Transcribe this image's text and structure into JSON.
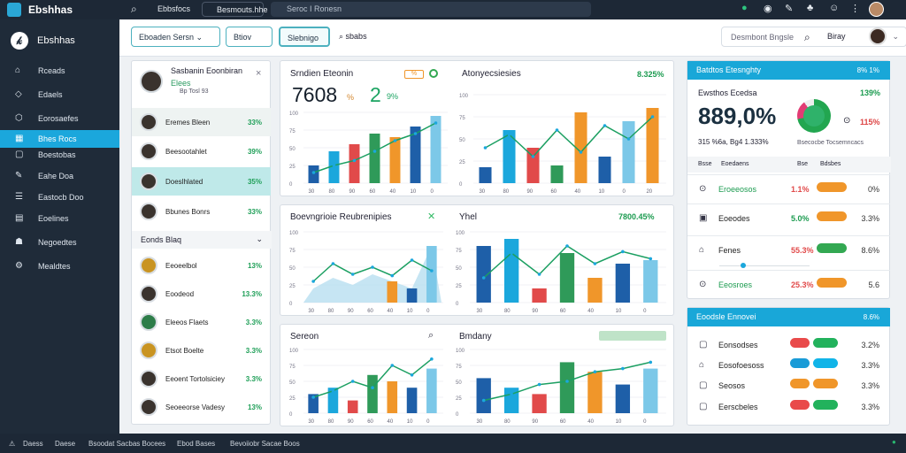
{
  "topbar": {
    "brand": "Ebshhas",
    "link": "Ebbsfocs",
    "pill": "Besmouts.hhe",
    "search_placeholder": "Seroc I Ronesn"
  },
  "sidebar": {
    "title": "Ebshhas",
    "items": [
      "Rceads",
      "Edaels",
      "Eorosaefes",
      "Bhes Rocs",
      "Boestobas",
      "Eahe Doa",
      "Eastocb Doo",
      "Eoelines",
      "Negoedtes",
      "Mealdtes"
    ]
  },
  "header": {
    "btn1": "Eboaden Sersn",
    "btn2": "Btiov",
    "btn3": "Slebnigo",
    "btn4": "sbabs",
    "select": "Desmbont Bngsle",
    "user": "Biray"
  },
  "profile": {
    "title": "Sasbanin Eoonbiran",
    "sub1": "Elees",
    "sub2": "Bp Tosl 93"
  },
  "people_top": [
    {
      "name": "Eremes Bleen",
      "pct": "33%"
    },
    {
      "name": "Beesootahlet",
      "pct": "39%"
    },
    {
      "name": "Doeslhlated",
      "pct": "35%"
    },
    {
      "name": "Bbunes Bonrs",
      "pct": "33%"
    }
  ],
  "group_title": "Eonds Blaq",
  "people_bottom": [
    {
      "name": "Eeoeelbol",
      "pct": "13%"
    },
    {
      "name": "Eoodeod",
      "pct": "13.3%"
    },
    {
      "name": "Eleeos Flaets",
      "pct": "3.3%"
    },
    {
      "name": "Etsot Boelte",
      "pct": "3.3%"
    },
    {
      "name": "Eeoent Tortolsiciey",
      "pct": "3.3%"
    },
    {
      "name": "Seoeeorse Vadesy",
      "pct": "13%"
    }
  ],
  "chart1": {
    "title": "Srndien Eteonin",
    "big1": "7608",
    "small1": "%",
    "big2": "2",
    "sub2": "9%",
    "tag": "%"
  },
  "chart2": {
    "title": "Atonyecsiesies",
    "pct": "8.325%"
  },
  "chart3": {
    "title": "Boevngrioie Reubrenipies"
  },
  "chart4": {
    "title": "Yhel",
    "pct": "7800.45%"
  },
  "chart5": {
    "title": "Sereon"
  },
  "chart6": {
    "title": "Bmdany"
  },
  "stats": {
    "head": "Batdtos Etesnghty",
    "head_val": "8% 1%",
    "l1": "Ewsthos Ecedsa",
    "v1": "139%",
    "big": "889,0%",
    "v2": "115%",
    "sub": "315 %6a, Bg4 1.333%",
    "sub2": "Bsecocbe Tocsemncacs",
    "cols": [
      "Bsse",
      "Eoedaens",
      "Bse",
      "Bdsbes"
    ],
    "rows": [
      {
        "icon": "⊙",
        "label": "Eroeeosos",
        "val": "1.1%",
        "color": "#f0962a",
        "end": "0%"
      },
      {
        "icon": "▣",
        "label": "Eoeodes",
        "val": "5.0%",
        "color": "#f0962a",
        "end": "3.3%"
      },
      {
        "icon": "⌂",
        "label": "Fenes",
        "val": "55.3%",
        "color": "#33a852",
        "end": "8.6%"
      },
      {
        "icon": "⊙",
        "label": "Eeosroes",
        "val": "25.3%",
        "color": "#f0962a",
        "end": "5.6"
      }
    ]
  },
  "lower": {
    "head": "Eoodsle Ennovei",
    "head_val": "8.6%",
    "rows": [
      {
        "icon": "▢",
        "label": "Eonsodses",
        "c1": "#e94a4a",
        "c2": "#22b25c",
        "end": "3.2%"
      },
      {
        "icon": "⌂",
        "label": "Eosofoesoss",
        "c1": "#199bd7",
        "c2": "#11b4e8",
        "end": "3.3%"
      },
      {
        "icon": "▢",
        "label": "Seosos",
        "c1": "#f0962a",
        "c2": "#f0962a",
        "end": "3.3%"
      },
      {
        "icon": "▢",
        "label": "Eerscbeles",
        "c1": "#e94a4a",
        "c2": "#22b25c",
        "end": "3.3%"
      }
    ]
  },
  "bottombar": [
    "Daess",
    "Daese",
    "Bsoodat Sacbas Bocees",
    "Ebod Bases",
    "Bevoiiobr Sacae Boos"
  ],
  "chart_data": [
    {
      "type": "bar",
      "title": "Srndien Eteonin",
      "values": [
        25,
        45,
        55,
        70,
        65,
        80,
        95
      ],
      "line": [
        15,
        25,
        32,
        45,
        60,
        70,
        85
      ]
    },
    {
      "type": "bar",
      "title": "Atonyecsiesies",
      "values": [
        18,
        60,
        40,
        20,
        80,
        30,
        70,
        85
      ],
      "line": [
        40,
        55,
        30,
        60,
        35,
        65,
        50,
        75
      ]
    },
    {
      "type": "area",
      "title": "Boevngrioie Reubrenipies",
      "values": [
        20,
        35,
        25,
        40,
        30,
        20,
        80
      ],
      "line": [
        30,
        55,
        40,
        50,
        38,
        60,
        45
      ]
    },
    {
      "type": "bar",
      "title": "Yhel",
      "values": [
        80,
        90,
        20,
        70,
        35,
        55,
        60
      ],
      "line": [
        35,
        70,
        40,
        80,
        55,
        72,
        62
      ]
    },
    {
      "type": "bar",
      "title": "Sereon",
      "values": [
        30,
        40,
        20,
        60,
        50,
        40,
        70
      ],
      "line": [
        25,
        35,
        50,
        40,
        75,
        60,
        85
      ]
    },
    {
      "type": "bar",
      "title": "Bmdany",
      "values": [
        55,
        40,
        30,
        80,
        65,
        45,
        70
      ],
      "line": [
        20,
        30,
        45,
        50,
        65,
        70,
        80
      ]
    }
  ],
  "colors": {
    "accent": "#19a7d8",
    "positive": "#1c9b50",
    "orange": "#f0962a",
    "red": "#e94a4a"
  }
}
